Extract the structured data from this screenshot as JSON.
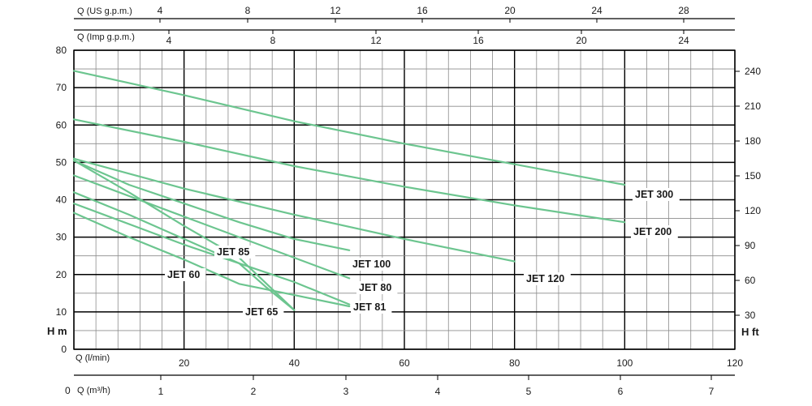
{
  "chart_data": {
    "type": "line",
    "title": "",
    "grid": true,
    "colors": {
      "curve": "#6cc58f",
      "grid_major": "#000000",
      "grid_minor": "#8c8c8c",
      "axis": "#000000"
    },
    "axes": {
      "left": {
        "label": "H m",
        "range": [
          0,
          80
        ],
        "ticks": [
          "0",
          "10",
          "20",
          "30",
          "40",
          "50",
          "60",
          "70",
          "80"
        ]
      },
      "right": {
        "label": "H ft",
        "ticks": [
          "30",
          "60",
          "90",
          "120",
          "150",
          "180",
          "210",
          "240"
        ]
      },
      "bottom_lmin": {
        "label": "Q (l/min)",
        "range": [
          0,
          120
        ],
        "ticks": [
          "20",
          "40",
          "60",
          "80",
          "100",
          "120"
        ]
      },
      "bottom_m3h": {
        "label": "Q (m³/h)",
        "zero_label": "0",
        "ticks": [
          "1",
          "2",
          "3",
          "4",
          "5",
          "6",
          "7"
        ]
      },
      "top_usgpm": {
        "label": "Q (US g.p.m.)",
        "ticks": [
          "4",
          "8",
          "12",
          "16",
          "20",
          "24",
          "28"
        ]
      },
      "top_impgpm": {
        "label": "Q (Imp g.p.m.)",
        "ticks": [
          "4",
          "8",
          "12",
          "16",
          "20",
          "24"
        ]
      }
    },
    "series": [
      {
        "name": "JET 300",
        "x": [
          0,
          20,
          40,
          60,
          80,
          100
        ],
        "y": [
          74.5,
          68,
          61,
          55,
          49.5,
          44
        ]
      },
      {
        "name": "JET 200",
        "x": [
          0,
          20,
          40,
          60,
          80,
          100
        ],
        "y": [
          61.5,
          55.5,
          49,
          43.5,
          38.5,
          34
        ]
      },
      {
        "name": "JET 120",
        "x": [
          0,
          20,
          40,
          60,
          80
        ],
        "y": [
          51,
          43,
          36,
          29.5,
          23.5
        ]
      },
      {
        "name": "JET 100",
        "x": [
          0,
          10,
          20,
          30,
          40,
          50
        ],
        "y": [
          50.5,
          44,
          39,
          34,
          29.5,
          26.5
        ]
      },
      {
        "name": "JET 80",
        "x": [
          0,
          20,
          40,
          50
        ],
        "y": [
          46.5,
          35.5,
          24.5,
          19
        ]
      },
      {
        "name": "JET 85",
        "x": [
          0,
          10,
          20,
          30,
          35,
          40
        ],
        "y": [
          50.5,
          42,
          33,
          24.5,
          17.5,
          10.5
        ]
      },
      {
        "name": "JET 81",
        "x": [
          0,
          20,
          40,
          50
        ],
        "y": [
          39,
          28,
          18,
          12
        ]
      },
      {
        "name": "JET 60",
        "x": [
          0,
          10,
          20,
          30,
          35,
          40
        ],
        "y": [
          42,
          36,
          29.5,
          23,
          16.5,
          10.5
        ]
      },
      {
        "name": "JET 65",
        "x": [
          0,
          10,
          20,
          30,
          40,
          50
        ],
        "y": [
          36.5,
          30,
          24,
          17.5,
          14.5,
          11.5
        ]
      }
    ],
    "labels": [
      {
        "text": "JET 300",
        "series": "JET 300"
      },
      {
        "text": "JET 200",
        "series": "JET 200"
      },
      {
        "text": "JET 120",
        "series": "JET 120"
      },
      {
        "text": "JET 100",
        "series": "JET 100"
      },
      {
        "text": "JET 80",
        "series": "JET 80"
      },
      {
        "text": "JET 85",
        "series": "JET 85"
      },
      {
        "text": "JET 81",
        "series": "JET 81"
      },
      {
        "text": "JET 60",
        "series": "JET 60"
      },
      {
        "text": "JET 65",
        "series": "JET 65"
      }
    ]
  }
}
